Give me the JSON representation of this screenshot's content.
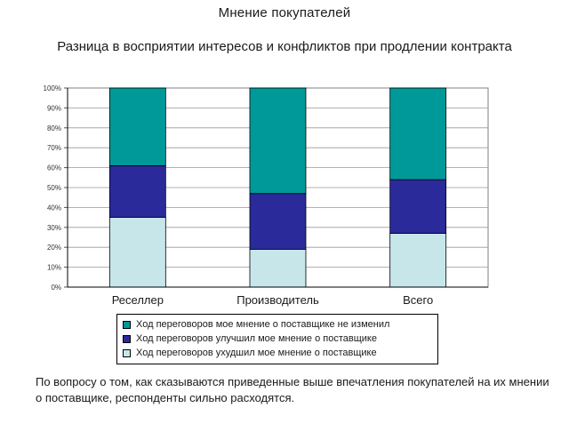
{
  "header": {
    "title": "Мнение покупателей",
    "subtitle": "Разница в восприятии интересов и конфликтов при продлении контракта"
  },
  "footnote": "По вопросу о том, как сказываются приведенные выше впечатления покупателей на их мнении о поставщике, респонденты сильно расходятся.",
  "colors": {
    "unchanged": "#009999",
    "improved": "#2a2a9a",
    "worsened": "#c6e6ea"
  },
  "chart_data": {
    "type": "bar",
    "stacked": true,
    "categories": [
      "Реселлер",
      "Производитель",
      "Всего"
    ],
    "series": [
      {
        "name": "Ход переговоров ухудшил мое мнение о поставщике",
        "values": [
          35,
          19,
          27
        ]
      },
      {
        "name": "Ход переговоров улучшил мое мнение о поставщике",
        "values": [
          26,
          28,
          27
        ]
      },
      {
        "name": "Ход переговоров мое мнение о поставщике не изменил",
        "values": [
          39,
          53,
          46
        ]
      }
    ],
    "ylim": [
      0,
      100
    ],
    "yticks": [
      "0%",
      "10%",
      "20%",
      "30%",
      "40%",
      "50%",
      "60%",
      "70%",
      "80%",
      "90%",
      "100%"
    ],
    "grid": true,
    "legend_position": "bottom"
  }
}
